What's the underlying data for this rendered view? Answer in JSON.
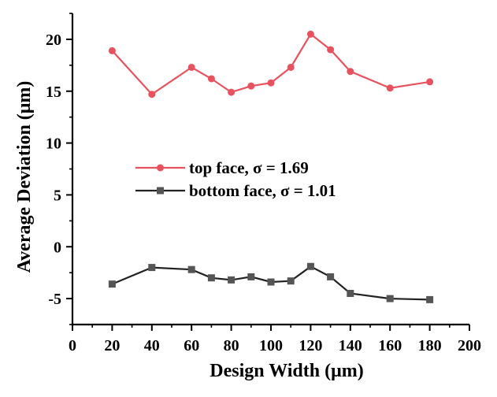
{
  "chart_data": {
    "type": "line",
    "xlabel": "Design Width (μm)",
    "ylabel": "Average Deviation (μm)",
    "xlim": [
      0,
      200
    ],
    "ylim": [
      -7.5,
      22.5
    ],
    "xticks": [
      "0",
      "20",
      "40",
      "60",
      "80",
      "100",
      "120",
      "140",
      "160",
      "180",
      "200"
    ],
    "yticks": [
      "-5",
      "0",
      "5",
      "10",
      "15",
      "20"
    ],
    "grid": false,
    "legend_position": "center-left",
    "series": [
      {
        "name": "top face, σ = 1.69",
        "color": "#e8525e",
        "marker": "circle",
        "x": [
          20,
          40,
          60,
          70,
          80,
          90,
          100,
          110,
          120,
          130,
          140,
          160,
          180
        ],
        "y": [
          18.9,
          14.7,
          17.3,
          16.2,
          14.9,
          15.5,
          15.8,
          17.3,
          20.5,
          19.0,
          16.9,
          15.3,
          15.9
        ]
      },
      {
        "name": "bottom face, σ = 1.01",
        "color": "#222222",
        "marker": "square",
        "x": [
          20,
          40,
          60,
          70,
          80,
          90,
          100,
          110,
          120,
          130,
          140,
          160,
          180
        ],
        "y": [
          -3.6,
          -2.0,
          -2.2,
          -3.0,
          -3.2,
          -2.9,
          -3.4,
          -3.3,
          -1.9,
          -2.9,
          -4.5,
          -5.0,
          -5.1
        ]
      }
    ]
  }
}
